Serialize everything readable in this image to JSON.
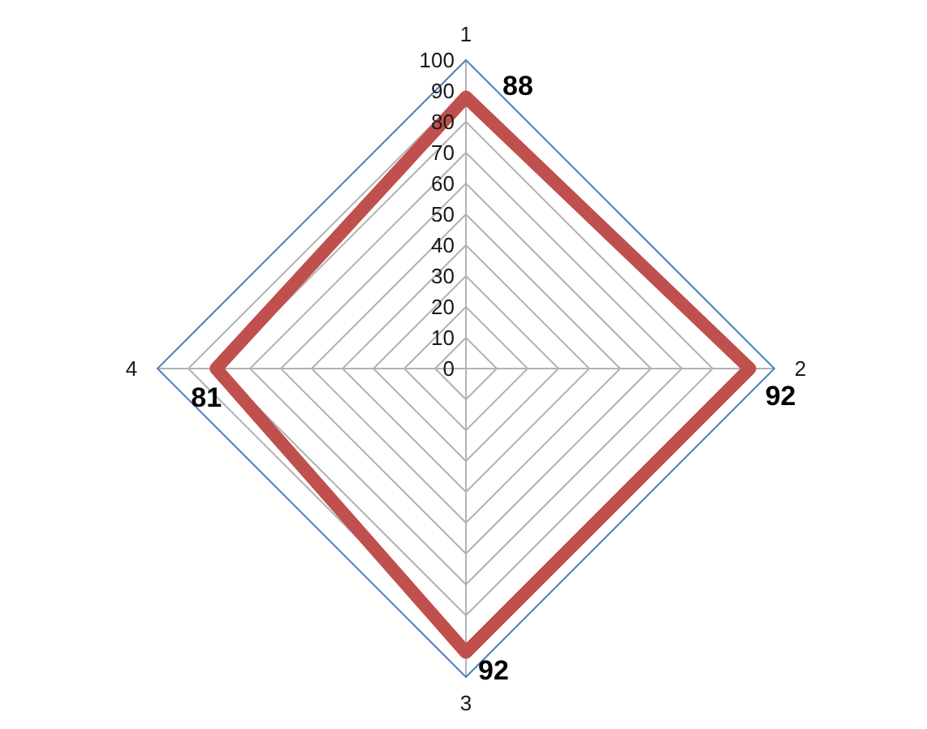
{
  "chart_data": {
    "type": "radar",
    "categories": [
      "1",
      "2",
      "3",
      "4"
    ],
    "series": [
      {
        "color": "#c0504d",
        "values": [
          88,
          92,
          92,
          81
        ]
      }
    ],
    "ylim": [
      0,
      100
    ],
    "yticks": [
      0,
      10,
      20,
      30,
      40,
      50,
      60,
      70,
      80,
      90,
      100
    ],
    "grid": true,
    "data_labels": true,
    "marker": "none",
    "line_style": "solid"
  }
}
